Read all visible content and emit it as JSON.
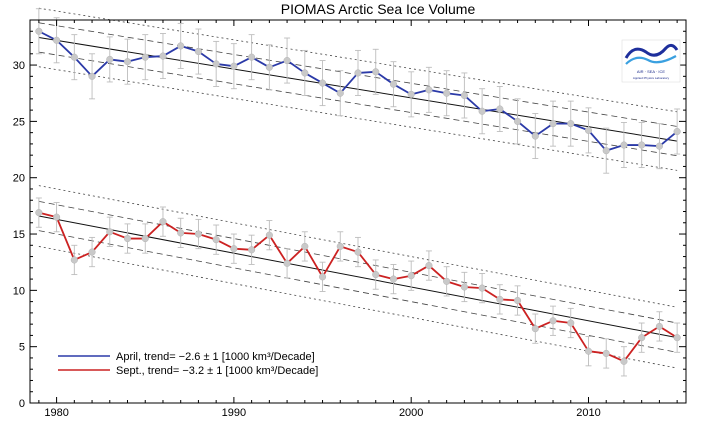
{
  "chart_data": {
    "type": "line",
    "title": "PIOMAS Arctic Sea Ice Volume",
    "xlabel": "",
    "ylabel": "",
    "xlim": [
      1978.5,
      2015.5
    ],
    "ylim": [
      0,
      34
    ],
    "x_ticks": [
      1980,
      1990,
      2000,
      2010
    ],
    "y_ticks": [
      0,
      5,
      10,
      15,
      20,
      25,
      30
    ],
    "grid": false,
    "legend_position": "bottom-left",
    "x": [
      1979,
      1980,
      1981,
      1982,
      1983,
      1984,
      1985,
      1986,
      1987,
      1988,
      1989,
      1990,
      1991,
      1992,
      1993,
      1994,
      1995,
      1996,
      1997,
      1998,
      1999,
      2000,
      2001,
      2002,
      2003,
      2004,
      2005,
      2006,
      2007,
      2008,
      2009,
      2010,
      2011,
      2012,
      2013,
      2014,
      2015
    ],
    "series": [
      {
        "name": "April",
        "legend_label": "April, trend= −2.6 ± 1 [1000 km³/Decade]",
        "color": "#2b3aa8",
        "values": [
          33.0,
          32.2,
          30.7,
          29.0,
          30.5,
          30.3,
          30.7,
          30.8,
          31.7,
          31.2,
          30.1,
          29.9,
          30.7,
          29.8,
          30.4,
          29.3,
          28.4,
          27.5,
          29.3,
          29.4,
          28.3,
          27.4,
          27.8,
          27.5,
          27.3,
          25.9,
          26.1,
          25.0,
          23.7,
          24.8,
          24.8,
          24.2,
          22.4,
          22.9,
          22.9,
          22.8,
          24.1
        ],
        "error": 2.0,
        "trend": [
          32.45,
          23.25
        ],
        "bands_dashed": 1.3,
        "bands_dotted": 2.6
      },
      {
        "name": "Sept.",
        "legend_label": "Sept., trend= −3.2 ± 1 [1000 km³/Decade]",
        "color": "#cc2222",
        "values": [
          16.9,
          16.5,
          12.7,
          13.4,
          15.2,
          14.6,
          14.6,
          16.1,
          15.1,
          15.0,
          14.5,
          13.7,
          13.6,
          14.9,
          12.4,
          13.9,
          11.2,
          13.9,
          13.4,
          11.4,
          11.0,
          11.3,
          12.2,
          10.8,
          10.3,
          10.2,
          9.2,
          9.1,
          6.6,
          7.3,
          7.1,
          4.6,
          4.4,
          3.7,
          5.8,
          6.8,
          5.8
        ],
        "error": 1.3,
        "trend": [
          16.6,
          5.8
        ],
        "bands_dashed": 1.3,
        "bands_dotted": 2.7
      }
    ]
  },
  "logo": {
    "text_line1": "AIR · SEA · ICE",
    "text_line2": "Applied Physics Laboratory"
  }
}
